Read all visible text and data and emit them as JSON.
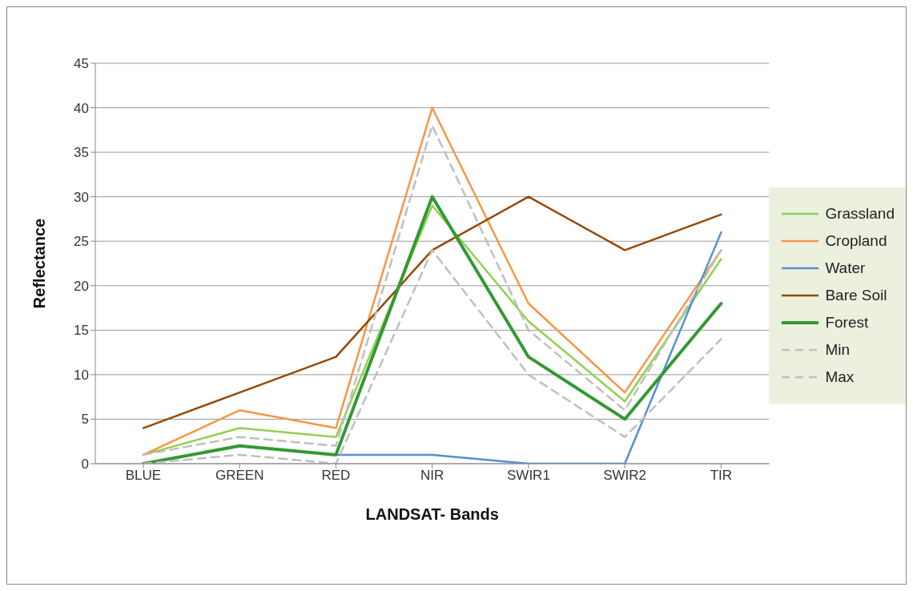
{
  "chart_data": {
    "type": "line",
    "xlabel": "LANDSAT- Bands",
    "ylabel": "Reflectance",
    "categories": [
      "BLUE",
      "GREEN",
      "RED",
      "NIR",
      "SWIR1",
      "SWIR2",
      "TIR"
    ],
    "series": [
      {
        "name": "Grassland",
        "color": "#92d050",
        "values": [
          1,
          4,
          3,
          29,
          16,
          7,
          23
        ]
      },
      {
        "name": "Cropland",
        "color": "#f79646",
        "values": [
          1,
          6,
          4,
          40,
          18,
          8,
          24
        ]
      },
      {
        "name": "Water",
        "color": "#558ed5",
        "values": [
          null,
          null,
          1,
          1,
          0,
          0,
          26
        ]
      },
      {
        "name": "Bare Soil",
        "color": "#974806",
        "values": [
          4,
          8,
          12,
          24,
          30,
          24,
          28
        ]
      },
      {
        "name": "Forest",
        "color": "#339933",
        "values": [
          0,
          2,
          1,
          30,
          12,
          5,
          18
        ]
      },
      {
        "name": "Min",
        "color": "#bfbfbf",
        "line_style": "dashed",
        "values": [
          0,
          1,
          0,
          24,
          10,
          3,
          14
        ]
      },
      {
        "name": "Max",
        "color": "#bfbfbf",
        "line_style": "dashed",
        "values": [
          1,
          3,
          2,
          38,
          15,
          6,
          24
        ]
      }
    ],
    "ylim": [
      0,
      45
    ],
    "yticks": [
      0,
      5,
      10,
      15,
      20,
      25,
      30,
      35,
      40,
      45
    ],
    "grid": "y",
    "legend": "right",
    "marker": "none",
    "line_style": "solid"
  }
}
